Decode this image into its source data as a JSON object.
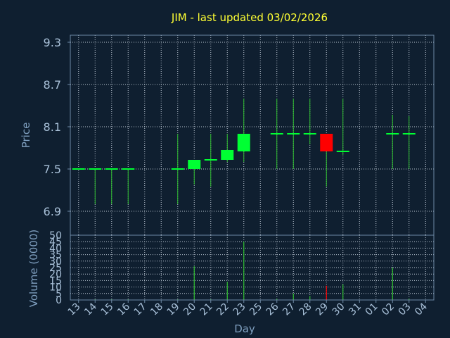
{
  "title": "JIM - last updated 03/02/2026",
  "colors": {
    "background": "#0f1f30",
    "title": "#ffff33",
    "axis_label": "#7f9fbf",
    "tick_label": "#a9c1d9",
    "up": "#00ff33",
    "down": "#ff0000",
    "wick": "#2fbf2f",
    "grid": "#b8c4d0"
  },
  "chart_data": [
    {
      "type": "candlestick",
      "ylabel": "Price",
      "ylim": [
        6.56,
        9.4
      ],
      "yticks": [
        "6.9",
        "7.5",
        "8.1",
        "8.7",
        "9.3"
      ],
      "grid": true,
      "categories": [
        "13",
        "14",
        "15",
        "16",
        "17",
        "18",
        "19",
        "20",
        "21",
        "22",
        "23",
        "25",
        "26",
        "27",
        "28",
        "29",
        "30",
        "31",
        "01",
        "02",
        "03",
        "04"
      ],
      "candles": [
        {
          "x": "13",
          "open": 7.5,
          "high": 7.5,
          "low": 7.5,
          "close": 7.5
        },
        {
          "x": "14",
          "open": 7.5,
          "high": 7.5,
          "low": 7.0,
          "close": 7.5
        },
        {
          "x": "15",
          "open": 7.5,
          "high": 7.5,
          "low": 7.0,
          "close": 7.5
        },
        {
          "x": "16",
          "open": 7.5,
          "high": 7.5,
          "low": 7.0,
          "close": 7.5
        },
        {
          "x": "19",
          "open": 7.5,
          "high": 8.0,
          "low": 7.0,
          "close": 7.5
        },
        {
          "x": "20",
          "open": 7.5,
          "high": 7.63,
          "low": 7.28,
          "close": 7.63
        },
        {
          "x": "21",
          "open": 7.63,
          "high": 8.0,
          "low": 7.25,
          "close": 7.63
        },
        {
          "x": "22",
          "open": 7.63,
          "high": 8.0,
          "low": 7.6,
          "close": 7.77
        },
        {
          "x": "23",
          "open": 7.75,
          "high": 8.5,
          "low": 7.6,
          "close": 8.0
        },
        {
          "x": "26",
          "open": 8.0,
          "high": 8.5,
          "low": 7.5,
          "close": 8.0
        },
        {
          "x": "27",
          "open": 8.0,
          "high": 8.5,
          "low": 7.5,
          "close": 8.0
        },
        {
          "x": "28",
          "open": 8.0,
          "high": 8.5,
          "low": 7.85,
          "close": 8.0
        },
        {
          "x": "29",
          "open": 8.0,
          "high": 8.0,
          "low": 7.25,
          "close": 7.75
        },
        {
          "x": "30",
          "open": 7.75,
          "high": 8.5,
          "low": 7.7,
          "close": 7.75
        },
        {
          "x": "02",
          "open": 8.0,
          "high": 8.27,
          "low": 7.5,
          "close": 8.0
        },
        {
          "x": "03",
          "open": 8.0,
          "high": 8.25,
          "low": 7.5,
          "close": 8.0
        }
      ]
    },
    {
      "type": "bar",
      "ylabel": "Volume (0000)",
      "xlabel": "Day",
      "ylim": [
        0,
        50
      ],
      "yticks": [
        "0",
        "5",
        "10",
        "15",
        "20",
        "25",
        "30",
        "35",
        "40",
        "45",
        "50"
      ],
      "grid": true,
      "categories": [
        "13",
        "14",
        "15",
        "16",
        "17",
        "18",
        "19",
        "20",
        "21",
        "22",
        "23",
        "25",
        "26",
        "27",
        "28",
        "29",
        "30",
        "31",
        "01",
        "02",
        "03",
        "04"
      ],
      "bars": [
        {
          "x": "13",
          "value": 0,
          "dir": "up"
        },
        {
          "x": "14",
          "value": 0.5,
          "dir": "up"
        },
        {
          "x": "15",
          "value": 0.5,
          "dir": "up"
        },
        {
          "x": "16",
          "value": 0.5,
          "dir": "up"
        },
        {
          "x": "19",
          "value": 0.5,
          "dir": "up"
        },
        {
          "x": "20",
          "value": 26,
          "dir": "up"
        },
        {
          "x": "21",
          "value": 0.5,
          "dir": "up"
        },
        {
          "x": "22",
          "value": 14,
          "dir": "up"
        },
        {
          "x": "23",
          "value": 45,
          "dir": "up"
        },
        {
          "x": "26",
          "value": 1,
          "dir": "up"
        },
        {
          "x": "27",
          "value": 5,
          "dir": "up"
        },
        {
          "x": "28",
          "value": 3,
          "dir": "up"
        },
        {
          "x": "29",
          "value": 11,
          "dir": "down"
        },
        {
          "x": "30",
          "value": 12,
          "dir": "up"
        },
        {
          "x": "02",
          "value": 25,
          "dir": "up"
        },
        {
          "x": "03",
          "value": 1,
          "dir": "up"
        }
      ]
    }
  ]
}
